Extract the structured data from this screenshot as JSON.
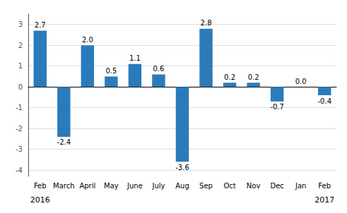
{
  "chart_data": {
    "type": "bar",
    "categories": [
      "Feb",
      "March",
      "April",
      "May",
      "June",
      "July",
      "Aug",
      "Sep",
      "Oct",
      "Nov",
      "Dec",
      "Jan",
      "Feb"
    ],
    "values": [
      2.7,
      -2.4,
      2.0,
      0.5,
      1.1,
      0.6,
      -3.6,
      2.8,
      0.2,
      0.2,
      -0.7,
      0.0,
      -0.4
    ],
    "value_labels": [
      "2.7",
      "-2.4",
      "2.0",
      "0.5",
      "1.1",
      "0.6",
      "-3.6",
      "2.8",
      "0.2",
      "0.2",
      "-0.7",
      "0.0",
      "-0.4"
    ],
    "data_labels": true,
    "color": "#2b7bba",
    "ylim": [
      -4.3,
      3.5
    ],
    "yticks": [
      -4,
      -3,
      -2,
      -1,
      0,
      1,
      2,
      3
    ],
    "grid": true,
    "annotations": [
      {
        "text": "2016",
        "x": 0
      },
      {
        "text": "2017",
        "x": 12
      }
    ]
  }
}
